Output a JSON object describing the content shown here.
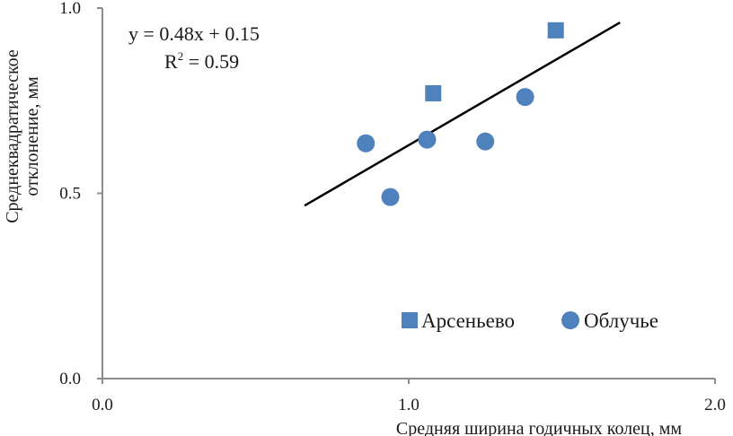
{
  "chart_data": {
    "type": "scatter",
    "xlabel": "Средняя ширина годичных колец, мм",
    "ylabel_lines": [
      "Среднеквадратическое",
      "отклонение, мм"
    ],
    "xlim": [
      0.0,
      2.0
    ],
    "ylim": [
      0.0,
      1.0
    ],
    "x_ticks": [
      "0.0",
      "1.0",
      "2.0"
    ],
    "y_ticks": [
      "0.0",
      "0.5",
      "1.0"
    ],
    "grid": false,
    "legend_position": "bottom-right",
    "series": [
      {
        "name": "Арсеньево",
        "marker": "square",
        "color": "#4f81bd",
        "points": [
          [
            1.08,
            0.77
          ],
          [
            1.48,
            0.94
          ]
        ]
      },
      {
        "name": "Облучье",
        "marker": "circle",
        "color": "#4f81bd",
        "points": [
          [
            0.86,
            0.635
          ],
          [
            0.94,
            0.49
          ],
          [
            1.06,
            0.645
          ],
          [
            1.25,
            0.64
          ],
          [
            1.38,
            0.76
          ]
        ]
      }
    ],
    "trendline": {
      "slope": 0.48,
      "intercept": 0.15,
      "x_range": [
        0.66,
        1.69
      ],
      "color": "#000000"
    },
    "annotations": {
      "equation": "y = 0.48x + 0.15",
      "r2_prefix": "R",
      "r2_sup": "2",
      "r2_suffix": " = 0.59"
    }
  }
}
